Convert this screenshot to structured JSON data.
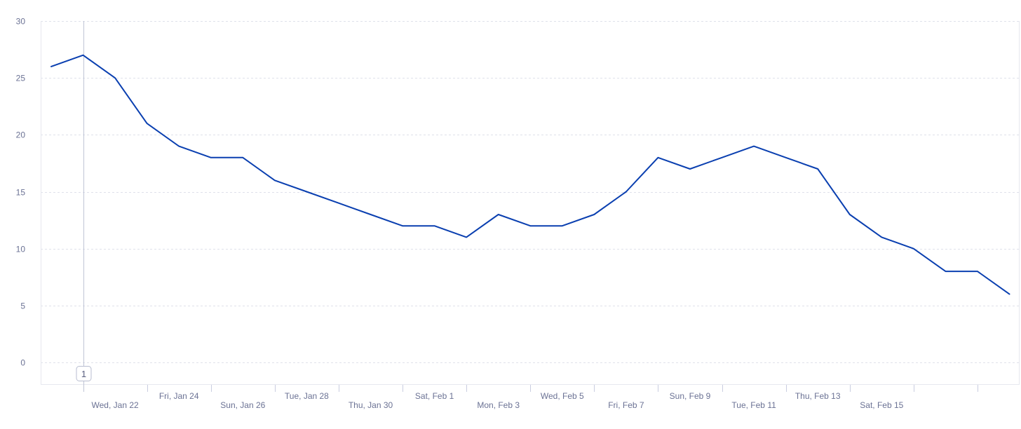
{
  "chart_data": {
    "type": "line",
    "title": "",
    "xlabel": "",
    "ylabel": "",
    "ylim": [
      0,
      30
    ],
    "grid": true,
    "y_ticks": [
      0,
      5,
      10,
      15,
      20,
      25,
      30
    ],
    "x": [
      "2025-01-20",
      "2025-01-21",
      "2025-01-22",
      "2025-01-23",
      "2025-01-24",
      "2025-01-25",
      "2025-01-26",
      "2025-01-27",
      "2025-01-28",
      "2025-01-29",
      "2025-01-30",
      "2025-01-31",
      "2025-02-01",
      "2025-02-02",
      "2025-02-03",
      "2025-02-04",
      "2025-02-05",
      "2025-02-06",
      "2025-02-07",
      "2025-02-08",
      "2025-02-09",
      "2025-02-10",
      "2025-02-11",
      "2025-02-12",
      "2025-02-13",
      "2025-02-14",
      "2025-02-15",
      "2025-02-16",
      "2025-02-17",
      "2025-02-18",
      "2025-02-19"
    ],
    "series": [
      {
        "values": [
          26,
          27,
          25,
          21,
          19,
          18,
          18,
          16,
          15,
          14,
          13,
          12,
          12,
          11,
          13,
          12,
          12,
          13,
          15,
          18,
          17,
          18,
          19,
          18,
          17,
          13,
          11,
          10,
          8,
          8,
          6
        ]
      }
    ],
    "x_tick_labels": [
      {
        "x": "2025-01-22",
        "label": "Wed, Jan 22"
      },
      {
        "x": "2025-01-24",
        "label": "Fri, Jan 24"
      },
      {
        "x": "2025-01-26",
        "label": "Sun, Jan 26"
      },
      {
        "x": "2025-01-28",
        "label": "Tue, Jan 28"
      },
      {
        "x": "2025-01-30",
        "label": "Thu, Jan 30"
      },
      {
        "x": "2025-02-01",
        "label": "Sat, Feb 1"
      },
      {
        "x": "2025-02-03",
        "label": "Mon, Feb 3"
      },
      {
        "x": "2025-02-05",
        "label": "Wed, Feb 5"
      },
      {
        "x": "2025-02-07",
        "label": "Fri, Feb 7"
      },
      {
        "x": "2025-02-09",
        "label": "Sun, Feb 9"
      },
      {
        "x": "2025-02-11",
        "label": "Tue, Feb 11"
      },
      {
        "x": "2025-02-13",
        "label": "Thu, Feb 13"
      },
      {
        "x": "2025-02-15",
        "label": "Sat, Feb 15"
      }
    ],
    "annotations": [
      {
        "x": "2025-01-21",
        "label": "1"
      }
    ]
  },
  "colors": {
    "line": "#0a3fb0",
    "grid": "#dfe1ea",
    "tick_text": "#6b7294"
  }
}
